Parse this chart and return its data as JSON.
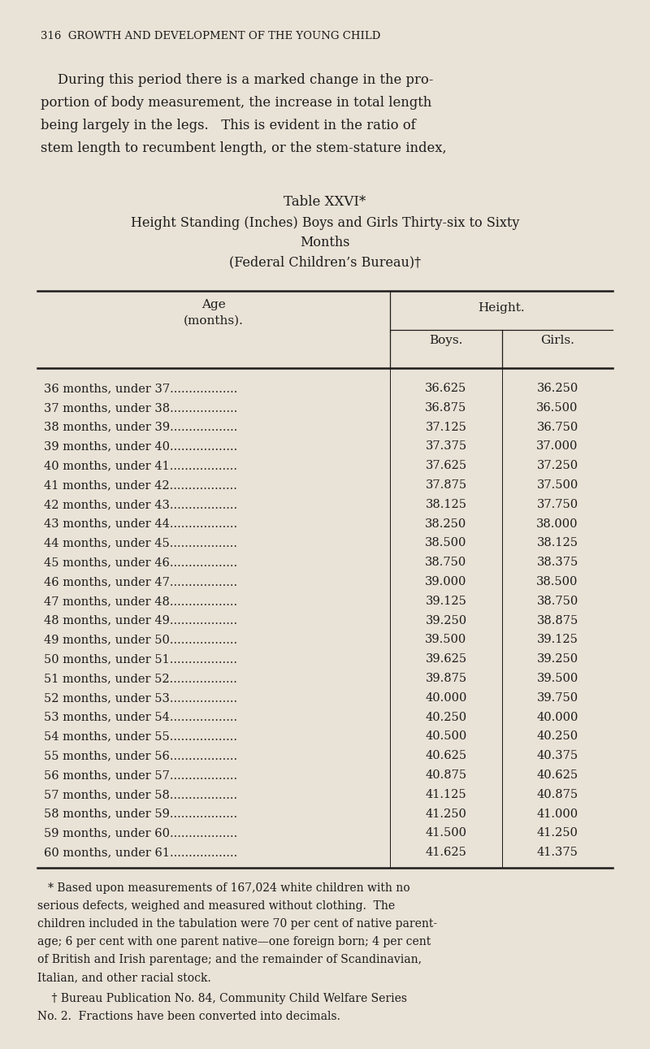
{
  "background_color": "#e9e2d6",
  "page_header": "316  GROWTH AND DEVELOPMENT OF THE YOUNG CHILD",
  "intro_lines": [
    "    During this period there is a marked change in the pro-",
    "portion of body measurement, the increase in total length",
    "being largely in the legs.   This is evident in the ratio of",
    "stem length to recumbent length, or the stem-stature index,"
  ],
  "table_title_line1": "Table XXVI*",
  "table_title_line2": "Height Standing (Inches) Boys and Girls Thirty-six to Sixty",
  "table_title_line3": "Months",
  "table_title_line4": "(Federal Children’s Bureau)†",
  "col_header_height": "Height.",
  "col_header_boys": "Boys.",
  "col_header_girls": "Girls.",
  "rows": [
    [
      "36 months, under 37",
      "36.625",
      "36.250"
    ],
    [
      "37 months, under 38",
      "36.875",
      "36.500"
    ],
    [
      "38 months, under 39",
      "37.125",
      "36.750"
    ],
    [
      "39 months, under 40",
      "37.375",
      "37.000"
    ],
    [
      "40 months, under 41",
      "37.625",
      "37.250"
    ],
    [
      "41 months, under 42",
      "37.875",
      "37.500"
    ],
    [
      "42 months, under 43",
      "38.125",
      "37.750"
    ],
    [
      "43 months, under 44",
      "38.250",
      "38.000"
    ],
    [
      "44 months, under 45",
      "38.500",
      "38.125"
    ],
    [
      "45 months, under 46",
      "38.750",
      "38.375"
    ],
    [
      "46 months, under 47",
      "39.000",
      "38.500"
    ],
    [
      "47 months, under 48",
      "39.125",
      "38.750"
    ],
    [
      "48 months, under 49",
      "39.250",
      "38.875"
    ],
    [
      "49 months, under 50",
      "39.500",
      "39.125"
    ],
    [
      "50 months, under 51",
      "39.625",
      "39.250"
    ],
    [
      "51 months, under 52",
      "39.875",
      "39.500"
    ],
    [
      "52 months, under 53",
      "40.000",
      "39.750"
    ],
    [
      "53 months, under 54",
      "40.250",
      "40.000"
    ],
    [
      "54 months, under 55",
      "40.500",
      "40.250"
    ],
    [
      "55 months, under 56",
      "40.625",
      "40.375"
    ],
    [
      "56 months, under 57",
      "40.875",
      "40.625"
    ],
    [
      "57 months, under 58",
      "41.125",
      "40.875"
    ],
    [
      "58 months, under 59",
      "41.250",
      "41.000"
    ],
    [
      "59 months, under 60",
      "41.500",
      "41.250"
    ],
    [
      "60 months, under 61",
      "41.625",
      "41.375"
    ]
  ],
  "footnote1_lines": [
    "   * Based upon measurements of 167,024 white children with no",
    "serious defects, weighed and measured without clothing.  The",
    "children included in the tabulation were 70 per cent of native parent-",
    "age; 6 per cent with one parent native—one foreign born; 4 per cent",
    "of British and Irish parentage; and the remainder of Scandinavian,",
    "Italian, and other racial stock."
  ],
  "footnote2_lines": [
    "    † Bureau Publication No. 84, Community Child Welfare Series",
    "No. 2.  Fractions have been converted into decimals."
  ]
}
